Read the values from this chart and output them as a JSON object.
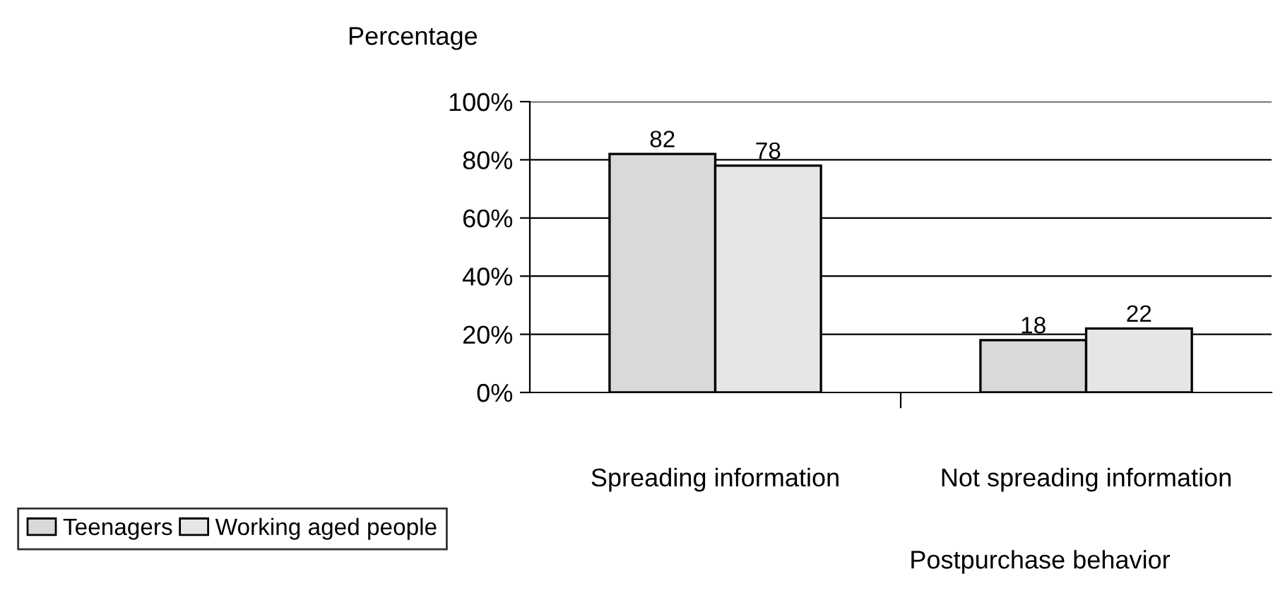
{
  "chart_data": {
    "type": "bar",
    "ylabel": "Percentage",
    "xlabel": "Postpurchase behavior",
    "categories": [
      "Spreading information",
      "Not spreading information"
    ],
    "series": [
      {
        "name": "Teenagers",
        "color": "#d9d9d9",
        "values": [
          82,
          18
        ]
      },
      {
        "name": "Working aged people",
        "color": "#e6e6e6",
        "values": [
          78,
          22
        ]
      }
    ],
    "ylim": [
      0,
      100
    ],
    "yticks": [
      {
        "value": 0,
        "label": "0%"
      },
      {
        "value": 20,
        "label": "20%"
      },
      {
        "value": 40,
        "label": "40%"
      },
      {
        "value": 60,
        "label": "60%"
      },
      {
        "value": 80,
        "label": "80%"
      },
      {
        "value": 100,
        "label": "100%"
      }
    ],
    "grid": "y",
    "legend": "bottom left",
    "data_labels": true
  }
}
